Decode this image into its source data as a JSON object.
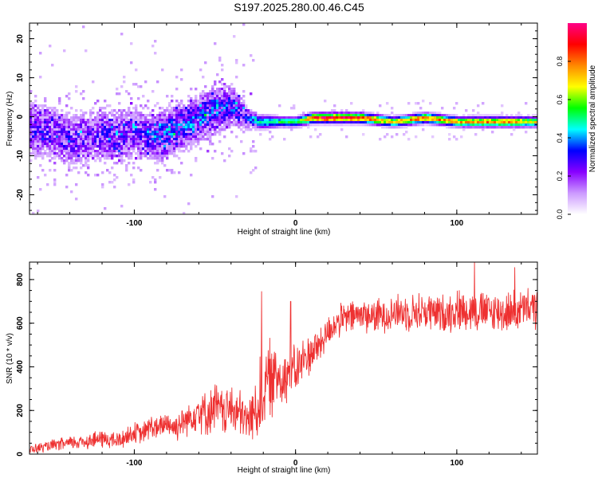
{
  "title": "S197.2025.280.00.46.C45",
  "colors": {
    "series": "#ee3030",
    "frame": "#000000"
  },
  "colorbar": {
    "label": "Normalized spectral amplitude",
    "ticks": [
      "0.0",
      "0.2",
      "0.4",
      "0.6",
      "0.8"
    ],
    "tick_values": [
      0.0,
      0.2,
      0.4,
      0.6,
      0.8
    ],
    "range": [
      0,
      1
    ],
    "stops": [
      "#ffffff",
      "#cc99ff",
      "#8800ff",
      "#0000ff",
      "#00ffff",
      "#00ff00",
      "#ffff00",
      "#ff8800",
      "#ff0000",
      "#ff0088"
    ]
  },
  "chart_data": [
    {
      "type": "heatmap",
      "title": "S197.2025.280.00.46.C45",
      "xlabel": "Height of straight line (km)",
      "ylabel": "Frequency (Hz)",
      "xlim": [
        -165,
        150
      ],
      "ylim": [
        -25,
        24
      ],
      "xticks": [
        -100,
        0,
        100
      ],
      "xtick_labels": [
        "-100",
        "0",
        "100"
      ],
      "yticks": [
        -20,
        -10,
        0,
        10,
        20
      ],
      "ytick_labels": [
        "-20",
        "-10",
        "0",
        "10",
        "20"
      ],
      "ridge": {
        "x": [
          -160,
          -150,
          -140,
          -130,
          -120,
          -110,
          -100,
          -90,
          -80,
          -70,
          -60,
          -50,
          -40,
          -30,
          -25,
          -20,
          -10,
          0,
          10,
          20,
          40,
          60,
          80,
          100,
          120,
          140,
          148
        ],
        "frequency": [
          -3,
          -4,
          -6,
          -5,
          -4,
          -5,
          -3,
          -5,
          -4,
          -2,
          0,
          2,
          3,
          0,
          -1,
          -1,
          -1,
          -1,
          0,
          0,
          0,
          -1,
          0,
          -1,
          -1,
          -1,
          -1
        ],
        "amplitude": [
          0.25,
          0.22,
          0.25,
          0.22,
          0.25,
          0.25,
          0.28,
          0.28,
          0.35,
          0.32,
          0.32,
          0.3,
          0.3,
          0.3,
          0.45,
          0.5,
          0.55,
          0.55,
          0.9,
          0.95,
          0.9,
          0.7,
          0.85,
          0.75,
          0.8,
          0.75,
          0.7
        ],
        "spread_hz": [
          8,
          8,
          8,
          8,
          8,
          8,
          7,
          7,
          7,
          7,
          7,
          7,
          6,
          3,
          2,
          2,
          1.5,
          1.5,
          1.5,
          1.5,
          1.5,
          1.5,
          1.5,
          1.5,
          1.5,
          1.5,
          1.5
        ]
      }
    },
    {
      "type": "line",
      "xlabel": "Height of straight line (km)",
      "ylabel": "SNR (10 * v/v)",
      "xlim": [
        -165,
        150
      ],
      "ylim": [
        0,
        880
      ],
      "xticks": [
        -100,
        0,
        100
      ],
      "xtick_labels": [
        "-100",
        "0",
        "100"
      ],
      "yticks": [
        0,
        200,
        400,
        600,
        800
      ],
      "ytick_labels": [
        "0",
        "200",
        "400",
        "600",
        "800"
      ],
      "series": [
        {
          "name": "SNR",
          "color": "#ee3030",
          "x": [
            -165,
            -150,
            -140,
            -130,
            -120,
            -110,
            -100,
            -95,
            -90,
            -85,
            -80,
            -75,
            -70,
            -65,
            -60,
            -55,
            -50,
            -45,
            -40,
            -35,
            -30,
            -25,
            -22,
            -20,
            -18,
            -16,
            -14,
            -12,
            -10,
            -8,
            -5,
            0,
            5,
            10,
            15,
            20,
            25,
            30,
            40,
            50,
            60,
            70,
            80,
            90,
            100,
            110,
            120,
            130,
            140,
            150
          ],
          "mean": [
            20,
            40,
            50,
            60,
            70,
            60,
            100,
            90,
            130,
            110,
            150,
            120,
            150,
            170,
            210,
            180,
            220,
            190,
            210,
            180,
            150,
            200,
            250,
            300,
            320,
            350,
            330,
            360,
            370,
            350,
            370,
            380,
            430,
            470,
            500,
            560,
            600,
            620,
            640,
            630,
            650,
            650,
            655,
            640,
            660,
            660,
            650,
            650,
            660,
            670
          ],
          "amplitude": [
            20,
            25,
            30,
            35,
            40,
            40,
            45,
            45,
            55,
            50,
            60,
            60,
            70,
            70,
            100,
            90,
            110,
            100,
            110,
            110,
            100,
            120,
            200,
            180,
            160,
            170,
            150,
            150,
            140,
            130,
            120,
            110,
            100,
            90,
            80,
            70,
            70,
            70,
            75,
            75,
            80,
            80,
            85,
            85,
            90,
            90,
            90,
            90,
            90,
            90
          ],
          "peaks": [
            {
              "x": -21,
              "y": 745
            },
            {
              "x": -3,
              "y": 700
            },
            {
              "x": 111,
              "y": 880
            },
            {
              "x": 136,
              "y": 855
            }
          ]
        }
      ]
    }
  ]
}
